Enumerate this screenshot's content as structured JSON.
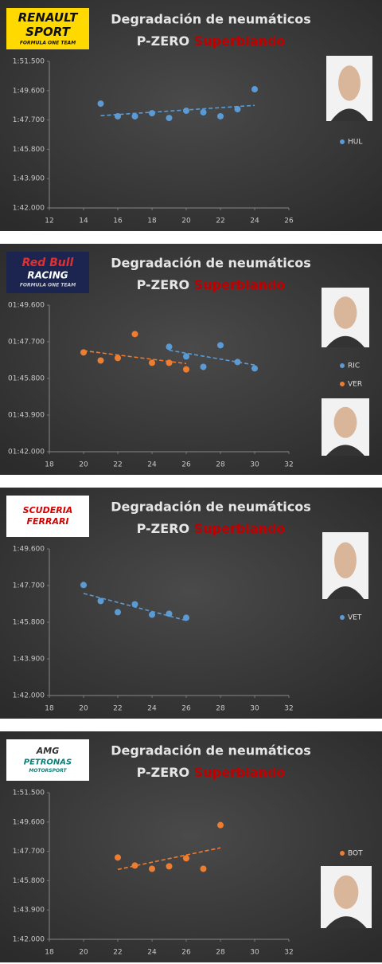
{
  "chart_data": [
    {
      "type": "scatter",
      "title": "Degradación de neumáticos",
      "subtitle": "P-ZERO",
      "compound": "Superblando",
      "logo": [
        "RENAULT",
        "SPORT",
        "FORMULA ONE TEAM"
      ],
      "xlim": [
        12,
        26
      ],
      "xticks": [
        12,
        14,
        16,
        18,
        20,
        22,
        24,
        26
      ],
      "ylim": [
        102,
        111.5
      ],
      "yticks": [
        {
          "value": 102,
          "label": "1:42.000"
        },
        {
          "value": 103.9,
          "label": "1:43.900"
        },
        {
          "value": 105.8,
          "label": "1:45.800"
        },
        {
          "value": 107.7,
          "label": "1:47.700"
        },
        {
          "value": 109.6,
          "label": "1:49.600"
        },
        {
          "value": 111.5,
          "label": "1:51.500"
        }
      ],
      "grid": false,
      "trendline": true,
      "series": [
        {
          "name": "HUL",
          "color": "#5b9bd5",
          "x": [
            15,
            16,
            17,
            18,
            19,
            20,
            21,
            22,
            23,
            24
          ],
          "values": [
            108.76,
            107.94,
            107.94,
            108.14,
            107.83,
            108.3,
            108.2,
            107.94,
            108.4,
            109.69
          ]
        }
      ]
    },
    {
      "type": "scatter",
      "title": "Degradación de neumáticos",
      "subtitle": "P-ZERO",
      "compound": "Superblando",
      "logo": [
        "Red Bull",
        "RACING",
        "FORMULA ONE TEAM"
      ],
      "xlim": [
        18,
        32
      ],
      "xticks": [
        18,
        20,
        22,
        24,
        26,
        28,
        30,
        32
      ],
      "ylim": [
        102,
        109.6
      ],
      "yticks": [
        {
          "value": 102,
          "label": "01:42.000"
        },
        {
          "value": 103.9,
          "label": "01:43.900"
        },
        {
          "value": 105.8,
          "label": "01:45.800"
        },
        {
          "value": 107.7,
          "label": "01:47.700"
        },
        {
          "value": 109.6,
          "label": "01:49.600"
        }
      ],
      "grid": false,
      "trendline": true,
      "series": [
        {
          "name": "RIC",
          "color": "#5b9bd5",
          "x": [
            25,
            26,
            27,
            28,
            29,
            30
          ],
          "values": [
            107.44,
            106.94,
            106.4,
            107.52,
            106.65,
            106.32
          ]
        },
        {
          "name": "VER",
          "color": "#ed7d31",
          "x": [
            20,
            21,
            22,
            23,
            24,
            25,
            26
          ],
          "values": [
            107.15,
            106.73,
            106.86,
            108.1,
            106.61,
            106.61,
            106.27
          ]
        }
      ]
    },
    {
      "type": "scatter",
      "title": "Degradación de neumáticos",
      "subtitle": "P-ZERO",
      "compound": "Superblando",
      "logo": [
        "SCUDERIA",
        "FERRARI"
      ],
      "xlim": [
        18,
        32
      ],
      "xticks": [
        18,
        20,
        22,
        24,
        26,
        28,
        30,
        32
      ],
      "ylim": [
        102,
        109.6
      ],
      "yticks": [
        {
          "value": 102,
          "label": "1:42.000"
        },
        {
          "value": 103.9,
          "label": "1:43.900"
        },
        {
          "value": 105.8,
          "label": "1:45.800"
        },
        {
          "value": 107.7,
          "label": "1:47.700"
        },
        {
          "value": 109.6,
          "label": "1:49.600"
        }
      ],
      "grid": false,
      "trendline": true,
      "series": [
        {
          "name": "VET",
          "color": "#5b9bd5",
          "x": [
            20,
            21,
            22,
            23,
            24,
            25,
            26
          ],
          "values": [
            107.73,
            106.9,
            106.32,
            106.73,
            106.19,
            106.24,
            106.03
          ]
        }
      ]
    },
    {
      "type": "scatter",
      "title": "Degradación de neumáticos",
      "subtitle": "P-ZERO",
      "compound": "Superblando",
      "logo": [
        "AMG",
        "PETRONAS",
        "MOTORSPORT"
      ],
      "xlim": [
        18,
        32
      ],
      "xticks": [
        18,
        20,
        22,
        24,
        26,
        28,
        30,
        32
      ],
      "ylim": [
        102,
        111.5
      ],
      "yticks": [
        {
          "value": 102,
          "label": "1:42.000"
        },
        {
          "value": 103.9,
          "label": "1:43.900"
        },
        {
          "value": 105.8,
          "label": "1:45.800"
        },
        {
          "value": 107.7,
          "label": "1:47.700"
        },
        {
          "value": 109.6,
          "label": "1:49.600"
        },
        {
          "value": 111.5,
          "label": "1:51.500"
        }
      ],
      "grid": false,
      "trendline": true,
      "series": [
        {
          "name": "BOT",
          "color": "#ed7d31",
          "x": [
            22,
            23,
            24,
            25,
            26,
            27,
            28
          ],
          "values": [
            107.3,
            106.78,
            106.57,
            106.73,
            107.25,
            106.57,
            109.4
          ]
        }
      ]
    }
  ]
}
